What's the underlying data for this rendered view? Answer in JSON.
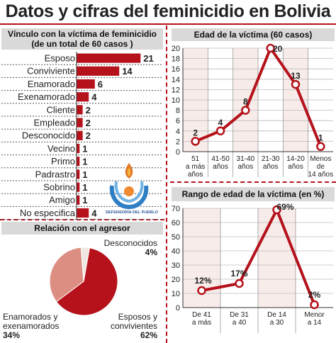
{
  "title": "Datos y cifras del feminicidio en Bolivia",
  "vinculo": {
    "header_line1": "Vínculo con la víctima de feminicidio",
    "header_line2": "(de un total de 60 casos )"
  },
  "relacion": {
    "header": "Relación con el agresor"
  },
  "edad": {
    "header": "Edad de la víctima (60 casos)"
  },
  "rango": {
    "header": "Rango de edad de la víctima (en %)"
  },
  "logo": {
    "text": "DEFENSORÍA DEL PUEBLO"
  },
  "colors": {
    "accent": "#b5121b",
    "pie_light": "#dd8e82",
    "pie_dark": "#b5121b",
    "pie_pale": "#f1e7e2",
    "band": "#f8ecea"
  },
  "chart_data": [
    {
      "type": "bar",
      "title": "Vínculo con la víctima de feminicidio",
      "subtitle": "(de un total de 60 casos )",
      "categories": [
        "Esposo",
        "Conviviente",
        "Enamorado",
        "Exenamorado",
        "Cliente",
        "Empleado",
        "Desconocido",
        "Vecino",
        "Primo",
        "Padrastro",
        "Sobrino",
        "Amigo",
        "No especifica"
      ],
      "values": [
        21,
        14,
        6,
        4,
        2,
        2,
        2,
        1,
        1,
        1,
        1,
        1,
        4
      ],
      "orientation": "horizontal"
    },
    {
      "type": "pie",
      "title": "Relación con el agresor",
      "slices": [
        {
          "label_line1": "Esposos y",
          "label_line2": "convivientes",
          "value": 62,
          "pct": "62%"
        },
        {
          "label_line1": "Enamorados y",
          "label_line2": "exenamorados",
          "value": 34,
          "pct": "34%"
        },
        {
          "label_line1": "Desconocidos",
          "label_line2": "",
          "value": 4,
          "pct": "4%"
        }
      ]
    },
    {
      "type": "line",
      "title": "Edad de la víctima (60 casos)",
      "categories": [
        {
          "line1": "51",
          "line2": "a más",
          "line3": "años"
        },
        {
          "line1": "41-50",
          "line2": "años",
          "line3": ""
        },
        {
          "line1": "31-40",
          "line2": "años",
          "line3": ""
        },
        {
          "line1": "21-30",
          "line2": "años",
          "line3": ""
        },
        {
          "line1": "14-20",
          "line2": "años",
          "line3": ""
        },
        {
          "line1": "Menos",
          "line2": "de",
          "line3": "14 años"
        }
      ],
      "values": [
        2,
        4,
        8,
        20,
        13,
        1
      ],
      "ylim": [
        0,
        20
      ],
      "yticks": [
        0,
        2,
        4,
        6,
        8,
        10,
        12,
        14,
        16,
        18,
        20
      ],
      "grid": true
    },
    {
      "type": "line",
      "title": "Rango de edad de la víctima (en %)",
      "categories": [
        {
          "line1": "De 41",
          "line2": "a más"
        },
        {
          "line1": "De 31",
          "line2": "a 40"
        },
        {
          "line1": "De 14",
          "line2": "a 30"
        },
        {
          "line1": "Menor",
          "line2": "a 14"
        }
      ],
      "values": [
        12,
        17,
        69,
        2
      ],
      "value_labels": [
        "12%",
        "17%",
        "69%",
        "2%"
      ],
      "ylim": [
        0,
        70
      ],
      "yticks": [
        0,
        10,
        20,
        30,
        40,
        50,
        60,
        70
      ],
      "grid": true
    }
  ]
}
